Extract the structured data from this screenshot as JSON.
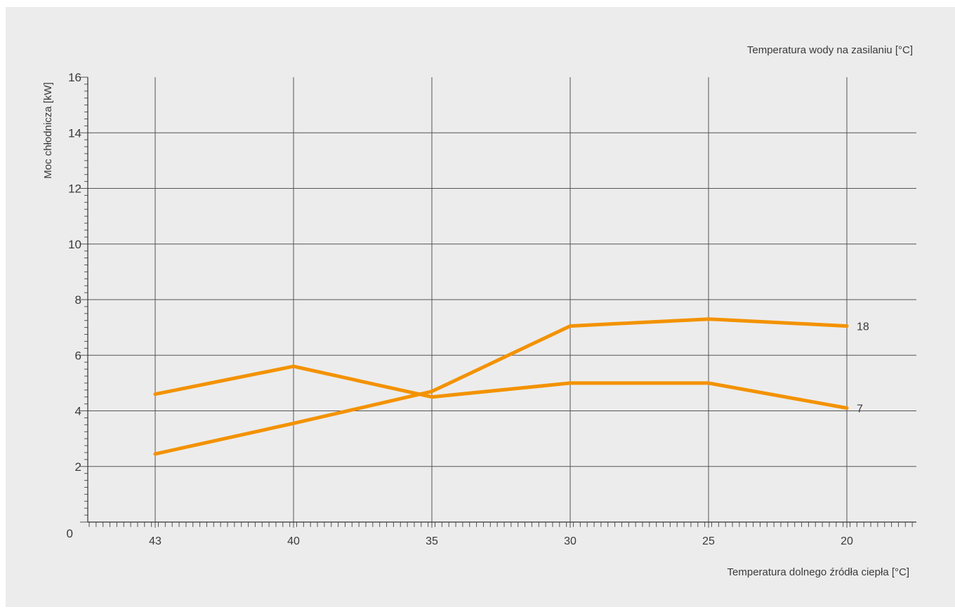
{
  "chart_data": {
    "type": "line",
    "title": "",
    "xlabel": "Temperatura dolnego źródła ciepła [°C]",
    "ylabel": "Moc chłodnicza [kW]",
    "legend_title": "Temperatura wody na zasilaniu [°C]",
    "x": [
      "43",
      "40",
      "35",
      "30",
      "25",
      "20"
    ],
    "ylim": [
      0,
      16
    ],
    "yticks": [
      "0",
      "2",
      "4",
      "6",
      "8",
      "10",
      "12",
      "14",
      "16"
    ],
    "grid": true,
    "series": [
      {
        "name": "18",
        "values": [
          2.45,
          3.55,
          4.7,
          7.05,
          7.3,
          7.05
        ]
      },
      {
        "name": "7",
        "values": [
          4.6,
          5.6,
          4.5,
          5.0,
          5.0,
          4.1
        ]
      }
    ],
    "colors": {
      "line": "#f39200",
      "grid": "#555555",
      "background": "#ececec"
    }
  }
}
